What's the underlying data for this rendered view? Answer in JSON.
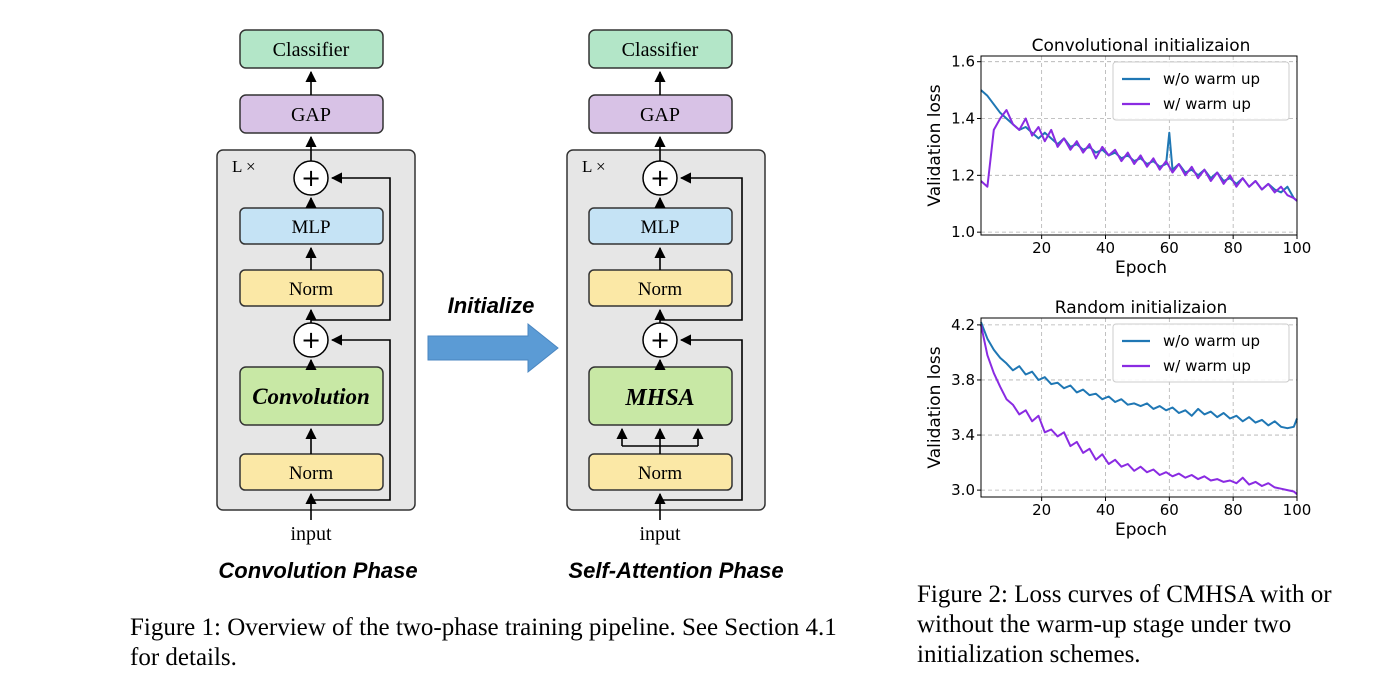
{
  "figure1": {
    "left": {
      "classifier": "Classifier",
      "gap": "GAP",
      "repeat": "L ×",
      "mlp": "MLP",
      "norm_top": "Norm",
      "core": "Convolution",
      "norm_bottom": "Norm",
      "input": "input",
      "plus": "+",
      "phase_label": "Convolution Phase"
    },
    "right": {
      "classifier": "Classifier",
      "gap": "GAP",
      "repeat": "L ×",
      "mlp": "MLP",
      "norm_top": "Norm",
      "core": "MHSA",
      "norm_bottom": "Norm",
      "input": "input",
      "plus": "+",
      "phase_label": "Self-Attention Phase"
    },
    "arrow_label": "Initialize",
    "caption": "Figure 1: Overview of the two-phase training pipeline. See Section 4.1 for details.",
    "colors": {
      "classifier": "#b3e6c8",
      "gap": "#d8c2e6",
      "mlp": "#c5e3f5",
      "norm": "#fbe8a6",
      "core": "#c8e8a5",
      "block_bg": "#e6e6e6",
      "arrow": "#5b9bd5"
    }
  },
  "figure2": {
    "caption": "Figure 2: Loss curves of CMHSA with or without the warm-up stage under two initialization schemes.",
    "colors": {
      "wo": "#1f77b4",
      "w": "#8a2be2"
    }
  },
  "chart_data": [
    {
      "type": "line",
      "title": "Convolutional initializaion",
      "xlabel": "Epoch",
      "ylabel": "Validation loss",
      "xlim": [
        1,
        100
      ],
      "ylim": [
        0.99,
        1.62
      ],
      "xticks": [
        20,
        40,
        60,
        80,
        100
      ],
      "yticks": [
        1.0,
        1.2,
        1.4,
        1.6
      ],
      "yticklabels": [
        "1.0",
        "1.2",
        "1.4",
        "1.6"
      ],
      "grid": true,
      "legend": "top-right",
      "x": [
        1,
        3,
        5,
        7,
        9,
        11,
        13,
        15,
        17,
        19,
        21,
        23,
        25,
        27,
        29,
        31,
        33,
        35,
        37,
        39,
        41,
        43,
        45,
        47,
        49,
        51,
        53,
        55,
        57,
        59,
        60,
        61,
        63,
        65,
        67,
        69,
        71,
        73,
        75,
        77,
        79,
        81,
        83,
        85,
        87,
        89,
        91,
        93,
        95,
        97,
        99,
        100
      ],
      "series": [
        {
          "name": "w/o warm up",
          "color": "#1f77b4",
          "values": [
            1.5,
            1.48,
            1.45,
            1.42,
            1.4,
            1.38,
            1.36,
            1.37,
            1.35,
            1.33,
            1.35,
            1.33,
            1.31,
            1.33,
            1.3,
            1.31,
            1.29,
            1.3,
            1.28,
            1.29,
            1.27,
            1.28,
            1.26,
            1.27,
            1.25,
            1.26,
            1.24,
            1.25,
            1.23,
            1.24,
            1.35,
            1.22,
            1.24,
            1.21,
            1.22,
            1.2,
            1.22,
            1.19,
            1.21,
            1.18,
            1.19,
            1.17,
            1.19,
            1.16,
            1.18,
            1.15,
            1.17,
            1.15,
            1.14,
            1.16,
            1.12,
            1.11
          ]
        },
        {
          "name": "w/ warm up",
          "color": "#8a2be2",
          "values": [
            1.18,
            1.16,
            1.36,
            1.4,
            1.43,
            1.38,
            1.36,
            1.4,
            1.34,
            1.37,
            1.32,
            1.36,
            1.3,
            1.33,
            1.29,
            1.32,
            1.28,
            1.31,
            1.26,
            1.3,
            1.27,
            1.29,
            1.25,
            1.28,
            1.24,
            1.27,
            1.23,
            1.26,
            1.22,
            1.25,
            1.23,
            1.21,
            1.24,
            1.2,
            1.23,
            1.19,
            1.22,
            1.18,
            1.21,
            1.17,
            1.2,
            1.16,
            1.19,
            1.16,
            1.18,
            1.15,
            1.17,
            1.14,
            1.16,
            1.13,
            1.12,
            1.11
          ]
        }
      ]
    },
    {
      "type": "line",
      "title": "Random initializaion",
      "xlabel": "Epoch",
      "ylabel": "Validation loss",
      "xlim": [
        1,
        100
      ],
      "ylim": [
        2.95,
        4.25
      ],
      "xticks": [
        20,
        40,
        60,
        80,
        100
      ],
      "yticks": [
        3.0,
        3.4,
        3.8,
        4.2
      ],
      "yticklabels": [
        "3.0",
        "3.4",
        "3.8",
        "4.2"
      ],
      "grid": true,
      "legend": "top-right",
      "x": [
        1,
        3,
        5,
        7,
        9,
        11,
        13,
        15,
        17,
        19,
        21,
        23,
        25,
        27,
        29,
        31,
        33,
        35,
        37,
        39,
        41,
        43,
        45,
        47,
        49,
        51,
        53,
        55,
        57,
        59,
        61,
        63,
        65,
        67,
        69,
        71,
        73,
        75,
        77,
        79,
        81,
        83,
        85,
        87,
        89,
        91,
        93,
        95,
        97,
        99,
        100
      ],
      "series": [
        {
          "name": "w/o warm up",
          "color": "#1f77b4",
          "values": [
            4.22,
            4.1,
            4.02,
            3.96,
            3.92,
            3.87,
            3.9,
            3.84,
            3.86,
            3.8,
            3.82,
            3.77,
            3.78,
            3.74,
            3.76,
            3.71,
            3.73,
            3.69,
            3.7,
            3.66,
            3.68,
            3.64,
            3.66,
            3.62,
            3.63,
            3.61,
            3.63,
            3.59,
            3.61,
            3.58,
            3.6,
            3.56,
            3.58,
            3.54,
            3.59,
            3.55,
            3.57,
            3.53,
            3.56,
            3.52,
            3.54,
            3.5,
            3.53,
            3.49,
            3.51,
            3.47,
            3.5,
            3.46,
            3.45,
            3.46,
            3.52
          ]
        },
        {
          "name": "w/ warm up",
          "color": "#8a2be2",
          "values": [
            4.2,
            3.98,
            3.85,
            3.75,
            3.66,
            3.62,
            3.55,
            3.58,
            3.5,
            3.54,
            3.42,
            3.44,
            3.39,
            3.42,
            3.32,
            3.35,
            3.27,
            3.3,
            3.22,
            3.26,
            3.19,
            3.22,
            3.17,
            3.19,
            3.14,
            3.17,
            3.13,
            3.15,
            3.11,
            3.13,
            3.1,
            3.12,
            3.09,
            3.11,
            3.08,
            3.1,
            3.07,
            3.08,
            3.06,
            3.07,
            3.05,
            3.09,
            3.04,
            3.06,
            3.03,
            3.05,
            3.02,
            3.01,
            3.0,
            2.99,
            2.97
          ]
        }
      ]
    }
  ]
}
